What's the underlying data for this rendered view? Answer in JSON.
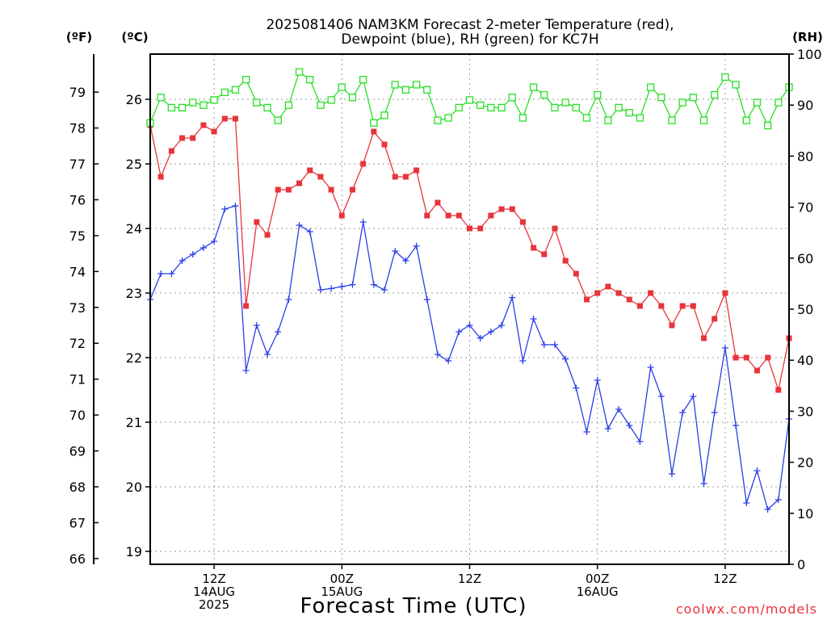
{
  "chart_data": {
    "type": "line",
    "title_lines": [
      "2025081406 NAM3KM Forecast 2-meter Temperature (red),",
      "Dewpoint (blue), RH (green) for KC7H"
    ],
    "xlabel": "Forecast Time (UTC)",
    "credit": "coolwx.com/models",
    "x_ticks": [
      {
        "hour": 6,
        "lines": [
          "12Z",
          "14AUG",
          "2025"
        ]
      },
      {
        "hour": 18,
        "lines": [
          "00Z",
          "15AUG"
        ]
      },
      {
        "hour": 30,
        "lines": [
          "12Z"
        ]
      },
      {
        "hour": 42,
        "lines": [
          "00Z",
          "16AUG"
        ]
      },
      {
        "hour": 54,
        "lines": [
          "12Z"
        ]
      }
    ],
    "xlim": [
      0,
      60
    ],
    "celsius_axis": {
      "label": "(ºC)",
      "lim": [
        18.8,
        26.7
      ],
      "ticks": [
        19,
        20,
        21,
        22,
        23,
        24,
        25,
        26
      ]
    },
    "fahrenheit_axis": {
      "label": "(ºF)",
      "ticks": [
        66,
        67,
        68,
        69,
        70,
        71,
        72,
        73,
        74,
        75,
        76,
        77,
        78,
        79
      ]
    },
    "rh_axis": {
      "label": "(RH)",
      "lim": [
        0,
        100
      ],
      "ticks": [
        0,
        10,
        20,
        30,
        40,
        50,
        60,
        70,
        80,
        90,
        100
      ]
    },
    "grid": true,
    "series": [
      {
        "name": "Temperature",
        "color": "#e8343c",
        "marker": "filled-square",
        "axis": "celsius",
        "values": [
          25.6,
          24.8,
          25.2,
          25.4,
          25.4,
          25.6,
          25.5,
          25.7,
          25.7,
          22.8,
          24.1,
          23.9,
          24.6,
          24.6,
          24.7,
          24.9,
          24.8,
          24.6,
          24.2,
          24.6,
          25.0,
          25.5,
          25.3,
          24.8,
          24.8,
          24.9,
          24.2,
          24.4,
          24.2,
          24.2,
          24.0,
          24.0,
          24.2,
          24.3,
          24.3,
          24.1,
          23.7,
          23.6,
          24.0,
          23.5,
          23.3,
          22.9,
          23.0,
          23.1,
          23.0,
          22.9,
          22.8,
          23.0,
          22.8,
          22.5,
          22.8,
          22.8,
          22.3,
          22.6,
          23.0,
          22.0,
          22.0,
          21.8,
          22.0,
          21.5,
          22.3
        ]
      },
      {
        "name": "Dewpoint",
        "color": "#2a3ee8",
        "marker": "plus",
        "axis": "celsius",
        "values": [
          22.9,
          23.3,
          23.3,
          23.5,
          23.6,
          23.7,
          23.8,
          24.3,
          24.35,
          21.8,
          22.5,
          22.05,
          22.4,
          22.9,
          24.05,
          23.95,
          23.05,
          23.07,
          23.1,
          23.13,
          24.1,
          23.13,
          23.05,
          23.65,
          23.5,
          23.73,
          22.9,
          22.05,
          21.95,
          22.4,
          22.5,
          22.3,
          22.4,
          22.5,
          22.93,
          21.95,
          22.6,
          22.2,
          22.2,
          21.98,
          21.53,
          20.85,
          21.65,
          20.9,
          21.2,
          20.95,
          20.7,
          21.85,
          21.4,
          20.2,
          21.15,
          21.4,
          20.05,
          21.15,
          22.15,
          20.95,
          19.75,
          20.25,
          19.65,
          19.8,
          21.05
        ]
      },
      {
        "name": "RH",
        "color": "#27e027",
        "marker": "open-square",
        "axis": "rh",
        "values": [
          86.5,
          91.5,
          89.5,
          89.5,
          90.5,
          90.0,
          91.0,
          92.5,
          93.0,
          95.0,
          90.5,
          89.5,
          87.0,
          90.0,
          96.5,
          95.0,
          90.0,
          91.0,
          93.5,
          91.5,
          95.0,
          86.5,
          88.0,
          94.0,
          93.0,
          94.0,
          93.0,
          87.0,
          87.5,
          89.5,
          91.0,
          90.0,
          89.5,
          89.5,
          91.5,
          87.5,
          93.5,
          92.0,
          89.5,
          90.5,
          89.5,
          87.5,
          92.0,
          87.0,
          89.5,
          88.5,
          87.5,
          93.5,
          91.5,
          87.0,
          90.5,
          91.5,
          87.0,
          92.0,
          95.5,
          94.0,
          87.0,
          90.5,
          86.0,
          90.5,
          93.5
        ]
      }
    ]
  }
}
